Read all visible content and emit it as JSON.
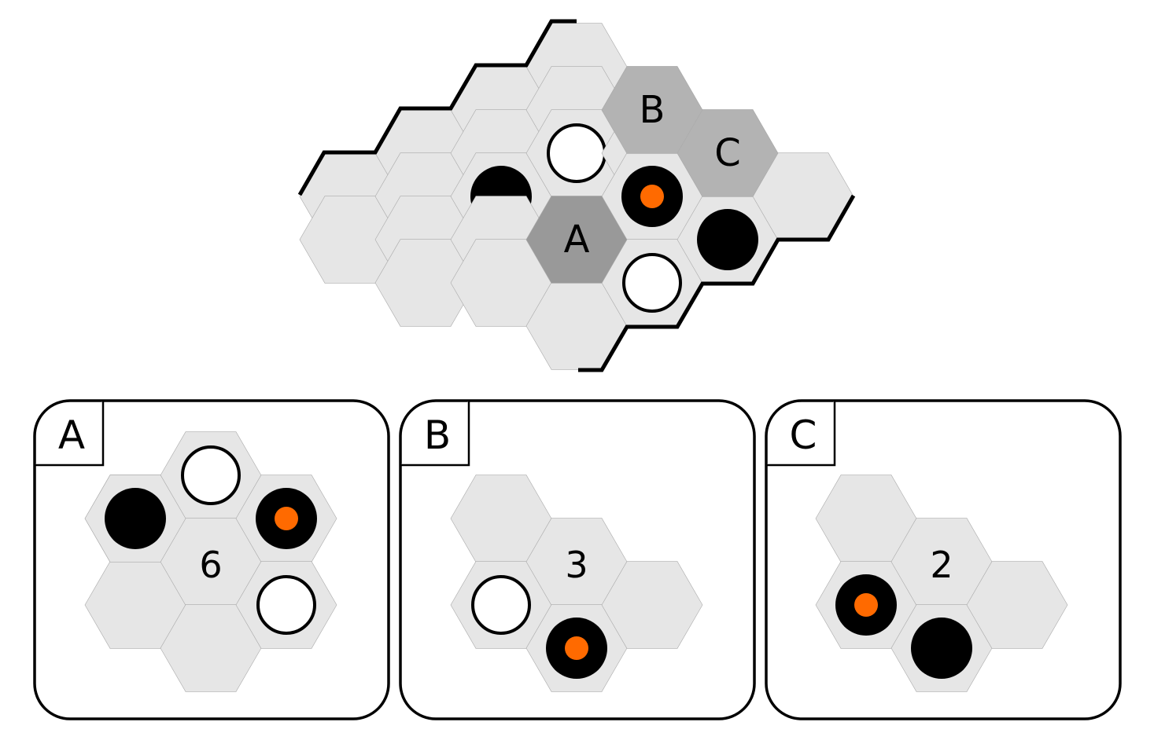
{
  "colors": {
    "empty_cell": "#e6e6e6",
    "highlight_a": "#999999",
    "highlight_bc": "#b3b3b3",
    "orange_marker": "#ff6a00",
    "black_stone": "#000000",
    "white_stone": "#ffffff"
  },
  "board": {
    "cell_labels": {
      "a": "A",
      "b": "B",
      "c": "C"
    }
  },
  "panels": [
    {
      "tag": "A",
      "count": "6"
    },
    {
      "tag": "B",
      "count": "3"
    },
    {
      "tag": "C",
      "count": "2"
    }
  ]
}
